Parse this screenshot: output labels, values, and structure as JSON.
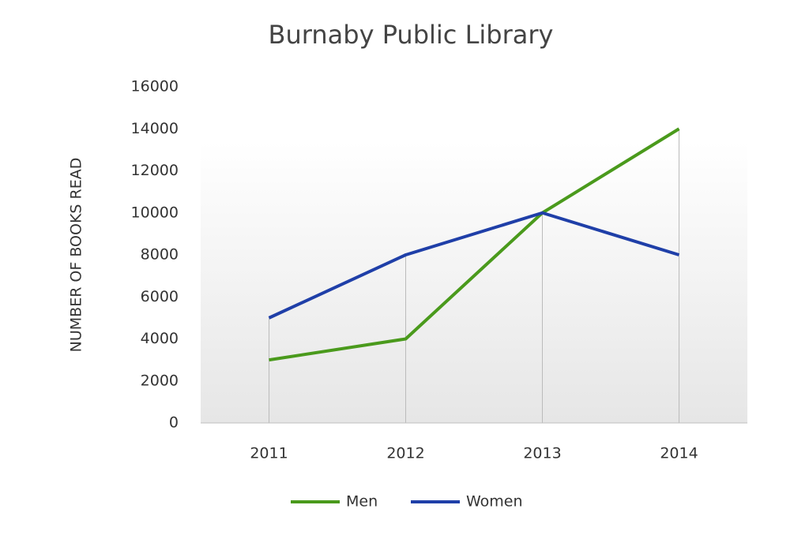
{
  "chart_data": {
    "type": "line",
    "title": "Burnaby Public Library",
    "y_label": "NUMBER OF BOOKS READ",
    "categories": [
      "2011",
      "2012",
      "2013",
      "2014"
    ],
    "series": [
      {
        "name": "Men",
        "color": "#4a9a1c",
        "values": [
          3000,
          4000,
          10000,
          14000
        ]
      },
      {
        "name": "Women",
        "color": "#1f3fa8",
        "values": [
          5000,
          8000,
          10000,
          8000
        ]
      }
    ],
    "ylim": [
      0,
      16000
    ],
    "yticks": [
      0,
      2000,
      4000,
      6000,
      8000,
      10000,
      12000,
      14000,
      16000
    ],
    "grid": false,
    "legend": "bottom"
  }
}
